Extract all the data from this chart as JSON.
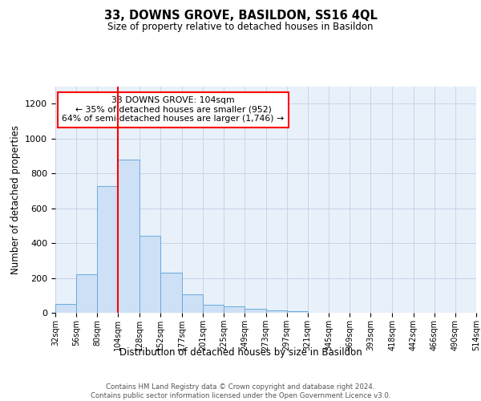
{
  "title": "33, DOWNS GROVE, BASILDON, SS16 4QL",
  "subtitle": "Size of property relative to detached houses in Basildon",
  "xlabel": "Distribution of detached houses by size in Basildon",
  "ylabel": "Number of detached properties",
  "bar_color": "#cde0f5",
  "bar_edge_color": "#6aaade",
  "grid_color": "#c8d4e8",
  "bg_color": "#e8f0fa",
  "red_line_x": 104,
  "annotation_text": "33 DOWNS GROVE: 104sqm\n← 35% of detached houses are smaller (952)\n64% of semi-detached houses are larger (1,746) →",
  "annotation_box_color": "white",
  "annotation_box_edge": "red",
  "footer": "Contains HM Land Registry data © Crown copyright and database right 2024.\nContains public sector information licensed under the Open Government Licence v3.0.",
  "bin_labels": [
    "32sqm",
    "56sqm",
    "80sqm",
    "104sqm",
    "128sqm",
    "152sqm",
    "177sqm",
    "201sqm",
    "225sqm",
    "249sqm",
    "273sqm",
    "297sqm",
    "321sqm",
    "345sqm",
    "369sqm",
    "393sqm",
    "418sqm",
    "442sqm",
    "466sqm",
    "490sqm",
    "514sqm"
  ],
  "bin_edges": [
    32,
    56,
    80,
    104,
    128,
    152,
    177,
    201,
    225,
    249,
    273,
    297,
    321,
    345,
    369,
    393,
    418,
    442,
    466,
    490,
    514
  ],
  "counts": [
    50,
    220,
    725,
    880,
    440,
    232,
    107,
    47,
    35,
    22,
    15,
    10,
    0,
    0,
    0,
    0,
    0,
    0,
    0,
    0
  ],
  "ylim": [
    0,
    1300
  ],
  "yticks": [
    0,
    200,
    400,
    600,
    800,
    1000,
    1200
  ]
}
